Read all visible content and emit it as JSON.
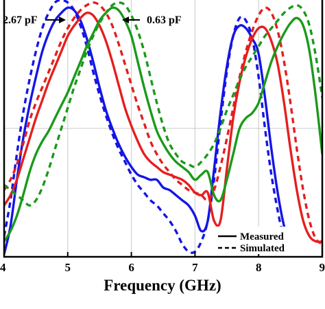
{
  "chart_data": {
    "type": "line",
    "xlabel": "Frequency (GHz)",
    "ylabel": "",
    "xlim": [
      4,
      9
    ],
    "ylim": [
      0,
      1
    ],
    "x_ticks": [
      "4",
      "5",
      "6",
      "7",
      "8",
      "9"
    ],
    "grid": true,
    "legend": {
      "placement": "bottom-right",
      "entries": [
        {
          "label": "Measured",
          "style": "solid"
        },
        {
          "label": "Simulated",
          "style": "dashed"
        }
      ]
    },
    "annotations": [
      {
        "text": "2.67 pF",
        "arrow_to": "blue"
      },
      {
        "text": "0.63 pF",
        "arrow_to": "green"
      }
    ],
    "colors": {
      "blue": "#1515e6",
      "red": "#e61e1e",
      "green": "#1a9a1a"
    },
    "series": [
      {
        "color": "blue",
        "style": "solid",
        "x": [
          4.0,
          4.1,
          4.2,
          4.3,
          4.4,
          4.5,
          4.6,
          4.7,
          4.8,
          4.9,
          5.0,
          5.1,
          5.2,
          5.3,
          5.4,
          5.5,
          5.6,
          5.7,
          5.8,
          5.9,
          6.0,
          6.1,
          6.2,
          6.3,
          6.4,
          6.5,
          6.6,
          6.7,
          6.8,
          6.9,
          7.0,
          7.1,
          7.2,
          7.3,
          7.4,
          7.5,
          7.6,
          7.7,
          7.8,
          7.9,
          8.0,
          8.1,
          8.2,
          8.3,
          8.4,
          8.5
        ],
        "y": [
          0.01,
          0.12,
          0.3,
          0.46,
          0.59,
          0.7,
          0.8,
          0.87,
          0.92,
          0.95,
          0.97,
          0.96,
          0.92,
          0.85,
          0.76,
          0.66,
          0.57,
          0.5,
          0.44,
          0.39,
          0.35,
          0.32,
          0.31,
          0.3,
          0.3,
          0.27,
          0.26,
          0.24,
          0.22,
          0.2,
          0.16,
          0.1,
          0.14,
          0.34,
          0.56,
          0.74,
          0.86,
          0.9,
          0.89,
          0.85,
          0.79,
          0.62,
          0.42,
          0.25,
          0.12,
          0.05
        ]
      },
      {
        "color": "blue",
        "style": "dashed",
        "x": [
          4.0,
          4.1,
          4.2,
          4.3,
          4.4,
          4.5,
          4.6,
          4.7,
          4.8,
          4.9,
          5.0,
          5.1,
          5.2,
          5.3,
          5.4,
          5.5,
          5.6,
          5.7,
          5.8,
          5.9,
          6.0,
          6.1,
          6.2,
          6.3,
          6.4,
          6.5,
          6.6,
          6.7,
          6.8,
          6.9,
          7.0,
          7.1,
          7.2,
          7.3,
          7.4,
          7.5,
          7.6,
          7.7,
          7.8,
          7.9,
          8.0,
          8.1,
          8.2,
          8.3,
          8.4
        ],
        "y": [
          0.08,
          0.22,
          0.4,
          0.56,
          0.69,
          0.8,
          0.89,
          0.95,
          0.99,
          1.0,
          0.99,
          0.96,
          0.9,
          0.82,
          0.72,
          0.63,
          0.55,
          0.48,
          0.42,
          0.37,
          0.32,
          0.28,
          0.25,
          0.22,
          0.2,
          0.17,
          0.14,
          0.1,
          0.05,
          0.02,
          0.02,
          0.06,
          0.14,
          0.3,
          0.52,
          0.72,
          0.86,
          0.93,
          0.92,
          0.85,
          0.7,
          0.5,
          0.32,
          0.18,
          0.06
        ]
      },
      {
        "color": "red",
        "style": "solid",
        "x": [
          4.0,
          4.1,
          4.2,
          4.3,
          4.4,
          4.5,
          4.6,
          4.7,
          4.8,
          4.9,
          5.0,
          5.1,
          5.2,
          5.3,
          5.4,
          5.5,
          5.6,
          5.7,
          5.8,
          5.9,
          6.0,
          6.1,
          6.2,
          6.3,
          6.4,
          6.5,
          6.6,
          6.7,
          6.8,
          6.9,
          7.0,
          7.1,
          7.2,
          7.3,
          7.4,
          7.5,
          7.6,
          7.7,
          7.8,
          7.9,
          8.0,
          8.1,
          8.2,
          8.3,
          8.4,
          8.5,
          8.6,
          8.7,
          8.8,
          8.9,
          9.0
        ],
        "y": [
          0.2,
          0.24,
          0.3,
          0.38,
          0.46,
          0.54,
          0.61,
          0.68,
          0.74,
          0.8,
          0.86,
          0.9,
          0.93,
          0.95,
          0.94,
          0.9,
          0.84,
          0.76,
          0.67,
          0.58,
          0.51,
          0.45,
          0.4,
          0.37,
          0.35,
          0.33,
          0.32,
          0.31,
          0.3,
          0.28,
          0.25,
          0.24,
          0.25,
          0.14,
          0.14,
          0.34,
          0.54,
          0.68,
          0.78,
          0.85,
          0.89,
          0.89,
          0.84,
          0.75,
          0.6,
          0.42,
          0.26,
          0.14,
          0.08,
          0.06,
          0.06
        ]
      },
      {
        "color": "red",
        "style": "dashed",
        "x": [
          4.0,
          4.1,
          4.2,
          4.3,
          4.4,
          4.5,
          4.6,
          4.7,
          4.8,
          4.9,
          5.0,
          5.1,
          5.2,
          5.3,
          5.4,
          5.5,
          5.6,
          5.7,
          5.8,
          5.9,
          6.0,
          6.1,
          6.2,
          6.3,
          6.4,
          6.5,
          6.6,
          6.7,
          6.8,
          6.9,
          7.0,
          7.1,
          7.2,
          7.3,
          7.4,
          7.5,
          7.6,
          7.7,
          7.8,
          7.9,
          8.0,
          8.1,
          8.2,
          8.3,
          8.4,
          8.5,
          8.6,
          8.7,
          8.8,
          8.9,
          9.0
        ],
        "y": [
          0.26,
          0.3,
          0.36,
          0.44,
          0.53,
          0.6,
          0.66,
          0.72,
          0.78,
          0.84,
          0.89,
          0.93,
          0.96,
          0.98,
          0.99,
          0.98,
          0.95,
          0.9,
          0.83,
          0.75,
          0.67,
          0.59,
          0.52,
          0.45,
          0.4,
          0.36,
          0.33,
          0.3,
          0.28,
          0.26,
          0.25,
          0.24,
          0.22,
          0.26,
          0.35,
          0.46,
          0.58,
          0.7,
          0.8,
          0.88,
          0.94,
          0.97,
          0.95,
          0.88,
          0.76,
          0.6,
          0.42,
          0.26,
          0.14,
          0.07,
          0.05
        ]
      },
      {
        "color": "green",
        "style": "solid",
        "x": [
          4.0,
          4.1,
          4.2,
          4.3,
          4.4,
          4.5,
          4.6,
          4.7,
          4.8,
          4.9,
          5.0,
          5.1,
          5.2,
          5.3,
          5.4,
          5.5,
          5.6,
          5.7,
          5.8,
          5.9,
          6.0,
          6.1,
          6.2,
          6.3,
          6.4,
          6.5,
          6.6,
          6.7,
          6.8,
          6.9,
          7.0,
          7.1,
          7.2,
          7.3,
          7.4,
          7.5,
          7.6,
          7.7,
          7.8,
          7.9,
          8.0,
          8.1,
          8.2,
          8.3,
          8.4,
          8.5,
          8.6,
          8.7,
          8.8,
          8.9,
          9.0
        ],
        "y": [
          0.06,
          0.1,
          0.16,
          0.24,
          0.33,
          0.4,
          0.45,
          0.49,
          0.54,
          0.59,
          0.64,
          0.7,
          0.76,
          0.82,
          0.87,
          0.92,
          0.95,
          0.97,
          0.96,
          0.92,
          0.86,
          0.76,
          0.66,
          0.57,
          0.49,
          0.44,
          0.4,
          0.37,
          0.35,
          0.33,
          0.3,
          0.32,
          0.33,
          0.24,
          0.22,
          0.3,
          0.4,
          0.5,
          0.54,
          0.56,
          0.6,
          0.68,
          0.76,
          0.82,
          0.87,
          0.91,
          0.93,
          0.9,
          0.8,
          0.62,
          0.4
        ]
      },
      {
        "color": "green",
        "style": "dashed",
        "x": [
          4.0,
          4.1,
          4.2,
          4.3,
          4.4,
          4.5,
          4.6,
          4.7,
          4.8,
          4.9,
          5.0,
          5.1,
          5.2,
          5.3,
          5.4,
          5.5,
          5.6,
          5.7,
          5.8,
          5.9,
          6.0,
          6.1,
          6.2,
          6.3,
          6.4,
          6.5,
          6.6,
          6.7,
          6.8,
          6.9,
          7.0,
          7.1,
          7.2,
          7.3,
          7.4,
          7.5,
          7.6,
          7.7,
          7.8,
          7.9,
          8.0,
          8.1,
          8.2,
          8.3,
          8.4,
          8.5,
          8.6,
          8.7,
          8.8,
          8.9,
          9.0
        ],
        "y": [
          0.28,
          0.26,
          0.24,
          0.22,
          0.2,
          0.22,
          0.27,
          0.34,
          0.42,
          0.5,
          0.58,
          0.66,
          0.73,
          0.8,
          0.86,
          0.91,
          0.95,
          0.98,
          0.99,
          0.98,
          0.94,
          0.88,
          0.8,
          0.7,
          0.6,
          0.51,
          0.44,
          0.4,
          0.37,
          0.36,
          0.35,
          0.37,
          0.4,
          0.44,
          0.5,
          0.57,
          0.63,
          0.69,
          0.74,
          0.78,
          0.82,
          0.86,
          0.89,
          0.92,
          0.95,
          0.97,
          0.98,
          0.96,
          0.9,
          0.78,
          0.62
        ]
      }
    ]
  }
}
